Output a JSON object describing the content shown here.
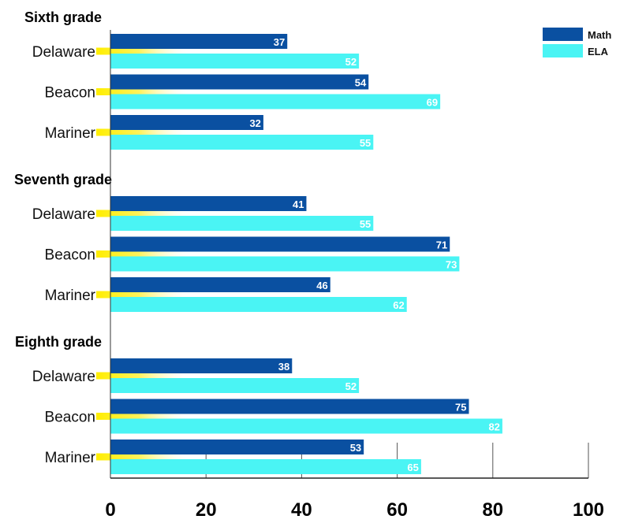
{
  "chart_data": {
    "type": "bar",
    "orientation": "horizontal",
    "groups": [
      {
        "title": "Sixth grade",
        "schools": [
          "Delaware",
          "Beacon",
          "Mariner"
        ]
      },
      {
        "title": "Seventh grade",
        "schools": [
          "Delaware",
          "Beacon",
          "Mariner"
        ]
      },
      {
        "title": "Eighth grade",
        "schools": [
          "Delaware",
          "Beacon",
          "Mariner"
        ]
      }
    ],
    "series": [
      {
        "name": "Math",
        "color": "#0a50a1",
        "values": [
          37,
          54,
          32,
          41,
          71,
          46,
          38,
          75,
          53
        ]
      },
      {
        "name": "ELA",
        "color": "#4af4f4",
        "values": [
          52,
          69,
          55,
          55,
          73,
          62,
          52,
          82,
          65
        ]
      }
    ],
    "xlim": [
      0,
      100
    ],
    "xticks": [
      0,
      20,
      40,
      60,
      80,
      100
    ],
    "grid": "vertical",
    "legend": "top-right"
  }
}
